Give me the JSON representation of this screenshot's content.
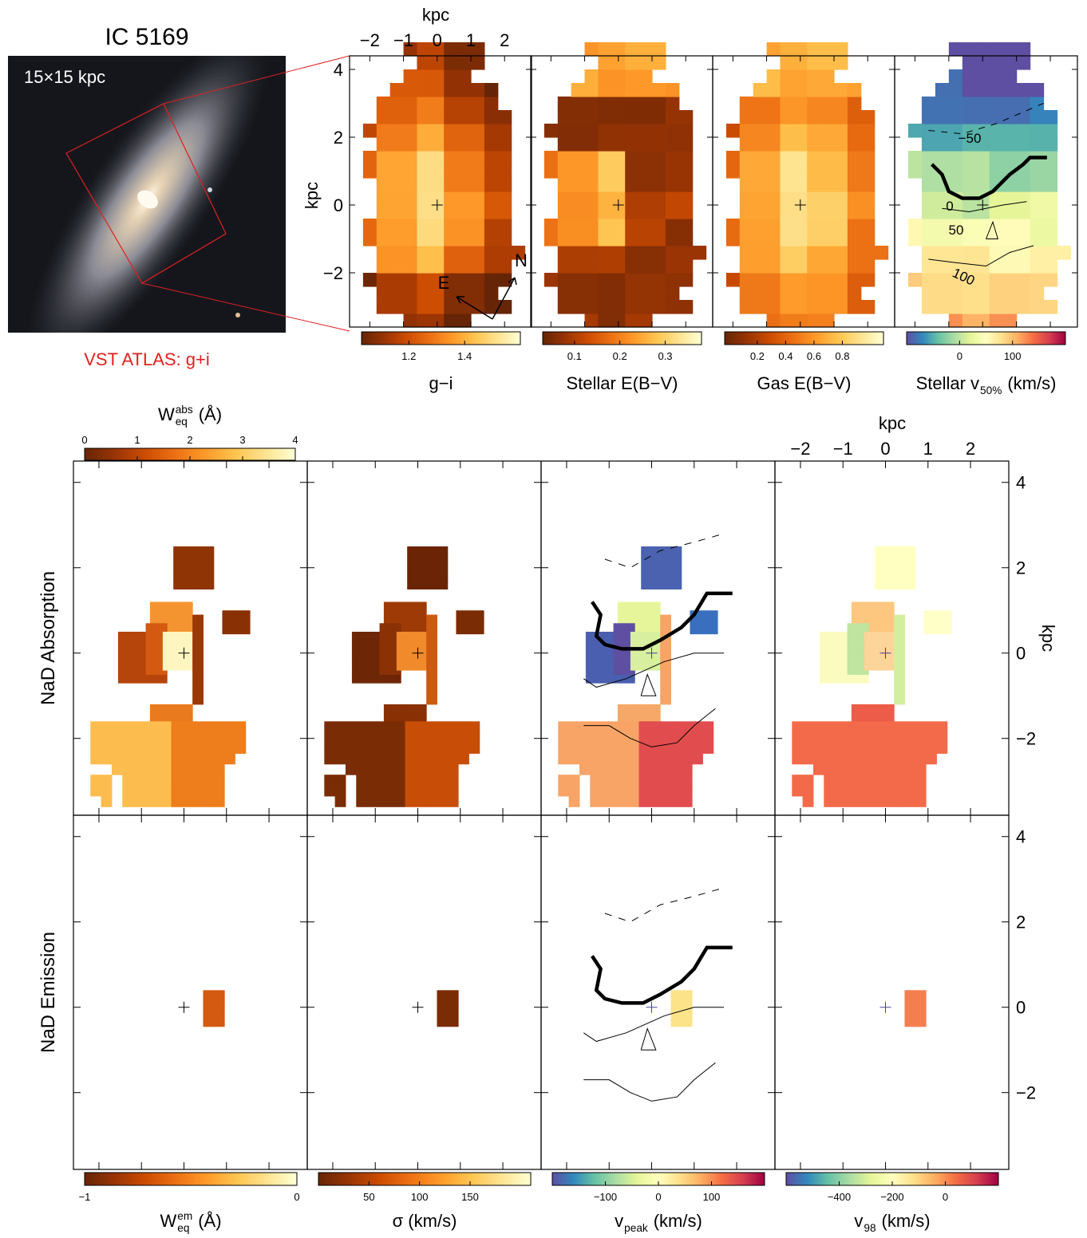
{
  "image": {
    "title": "IC 5169",
    "scale": "15×15 kpc",
    "caption": "VST ATLAS: g+i"
  },
  "top_row": {
    "xlabel": "kpc",
    "ylabel": "kpc",
    "xlim": [
      -2.6,
      2.8
    ],
    "ylim": [
      -3.6,
      4.4
    ],
    "xticks": [
      {
        "value": -2,
        "label": "−2"
      },
      {
        "value": -1,
        "label": "−1"
      },
      0,
      1,
      2
    ],
    "yticks": [
      {
        "value": -2,
        "label": "−2"
      },
      0,
      2,
      4
    ],
    "compass": [
      "E",
      "N"
    ],
    "contour_labels": [
      {
        "value": -50,
        "label": "−50"
      },
      0,
      50,
      100
    ],
    "colorbars": [
      {
        "label": {
          "text": "g−i"
        },
        "lim": [
          1.03,
          1.6
        ],
        "ticks": [
          1.2,
          1.4
        ],
        "cmap": "YlOrBr"
      },
      {
        "label": {
          "text": "Stellar E(B−V)"
        },
        "lim": [
          0.03,
          0.38
        ],
        "ticks": [
          0.1,
          0.2,
          0.3
        ],
        "cmap": "YlOrBr"
      },
      {
        "label": {
          "text": "Gas E(B−V)"
        },
        "lim": [
          -0.03,
          1.09
        ],
        "ticks": [
          0.2,
          0.4,
          0.6,
          0.8
        ],
        "cmap": "YlOrBr"
      },
      {
        "label": {
          "text": "Stellar v",
          "sub": "50%",
          "unit": "(km/s)"
        },
        "lim": [
          -100,
          200
        ],
        "ticks": [
          0,
          100
        ],
        "cmap": "Spectral"
      }
    ]
  },
  "bottom_rows": {
    "xlabel": "kpc",
    "ylabel": "kpc",
    "xlim": [
      -2.6,
      2.9
    ],
    "ylim": [
      -3.8,
      4.5
    ],
    "xticks": [
      {
        "value": -2,
        "label": "−2"
      },
      {
        "value": -1,
        "label": "−1"
      },
      0,
      1,
      2
    ],
    "yticks": [
      {
        "value": -2,
        "label": "−2"
      },
      0,
      2,
      4
    ],
    "rows": [
      "NaD Absorption",
      "NaD Emission"
    ],
    "top_colorbar": {
      "label": {
        "text": "W",
        "sup": "abs",
        "sub": "eq",
        "unit": "(Å)"
      },
      "lim": [
        0,
        4
      ],
      "ticks": [
        0,
        1,
        2,
        3,
        4
      ],
      "cmap": "YlOrBr"
    },
    "colorbars": [
      {
        "label": {
          "text": "W",
          "sup": "em",
          "sub": "eq",
          "unit": "(Å)"
        },
        "lim": [
          -1,
          0
        ],
        "ticks": [
          {
            "value": -1,
            "label": "−1"
          },
          0
        ],
        "cmap": "YlOrBr"
      },
      {
        "label": {
          "text": "σ (km/s)"
        },
        "lim": [
          0,
          210
        ],
        "ticks": [
          50,
          100,
          150
        ],
        "cmap": "YlOrBr"
      },
      {
        "label": {
          "text": "v",
          "sub": "peak",
          "unit": "(km/s)"
        },
        "lim": [
          -200,
          200
        ],
        "ticks": [
          {
            "value": -100,
            "label": "−100"
          },
          0,
          100
        ],
        "cmap": "Spectral"
      },
      {
        "label": {
          "text": "v",
          "sub": "98",
          "unit": "(km/s)"
        },
        "lim": [
          -600,
          200
        ],
        "ticks": [
          {
            "value": -400,
            "label": "−400"
          },
          {
            "value": -200,
            "label": "−200"
          },
          0
        ],
        "cmap": "Spectral"
      }
    ]
  }
}
